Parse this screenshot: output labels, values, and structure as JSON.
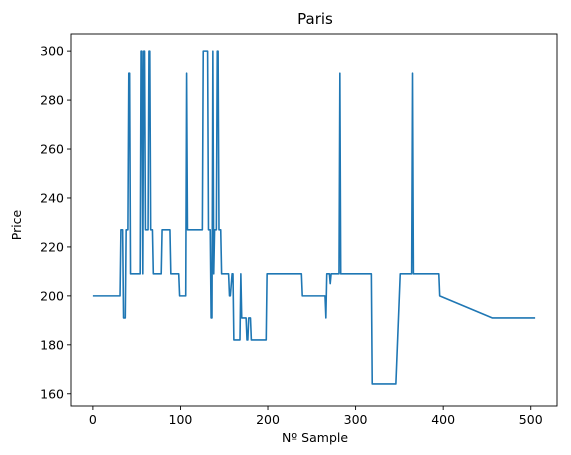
{
  "chart_data": {
    "type": "line",
    "title": "Paris",
    "xlabel": "Nº Sample",
    "ylabel": "Price",
    "xlim": [
      -25,
      530
    ],
    "ylim": [
      155,
      307
    ],
    "xticks": [
      0,
      100,
      200,
      300,
      400,
      500
    ],
    "yticks": [
      160,
      180,
      200,
      220,
      240,
      260,
      280,
      300
    ],
    "grid": false,
    "legend": "none",
    "color": "#1f77b4",
    "series": [
      {
        "x": [
          0,
          31,
          32,
          34,
          35,
          37,
          38,
          40,
          41,
          42,
          43,
          44,
          54,
          55,
          56,
          57,
          58,
          59,
          60,
          61,
          63,
          64,
          65,
          66,
          67,
          68,
          69,
          70,
          71,
          78,
          79,
          88,
          89,
          98,
          99,
          106,
          107,
          108,
          109,
          110,
          125,
          126,
          131,
          132,
          134,
          135,
          136,
          137,
          138,
          139,
          141,
          142,
          143,
          144,
          145,
          146,
          147,
          148,
          155,
          156,
          157,
          159,
          160,
          161,
          162,
          163,
          164,
          168,
          169,
          170,
          171,
          172,
          175,
          176,
          177,
          178,
          180,
          181,
          182,
          183,
          184,
          188,
          198,
          199,
          238,
          239,
          264,
          265,
          266,
          267,
          270,
          271,
          272,
          273,
          281,
          282,
          283,
          284,
          285,
          311,
          312,
          318,
          319,
          345,
          346,
          350,
          351,
          361,
          362,
          363,
          364,
          365,
          366,
          367,
          395,
          396,
          456,
          505
        ],
        "y": [
          200,
          200,
          227,
          227,
          191,
          191,
          227,
          227,
          291,
          291,
          209,
          209,
          209,
          300,
          300,
          209,
          300,
          300,
          227,
          227,
          227,
          300,
          300,
          227,
          227,
          227,
          209,
          209,
          209,
          209,
          227,
          227,
          209,
          209,
          200,
          200,
          291,
          227,
          227,
          227,
          227,
          300,
          300,
          227,
          227,
          191,
          191,
          300,
          209,
          227,
          227,
          300,
          300,
          227,
          227,
          227,
          209,
          209,
          209,
          200,
          200,
          209,
          209,
          182,
          182,
          182,
          182,
          182,
          209,
          191,
          191,
          191,
          191,
          182,
          182,
          191,
          191,
          182,
          182,
          182,
          182,
          182,
          182,
          209,
          209,
          200,
          200,
          200,
          191,
          209,
          209,
          205,
          209,
          209,
          209,
          291,
          209,
          209,
          209,
          209,
          209,
          209,
          164,
          164,
          164,
          200,
          209,
          209,
          209,
          209,
          209,
          291,
          209,
          209,
          209,
          200,
          191,
          191
        ]
      }
    ]
  }
}
